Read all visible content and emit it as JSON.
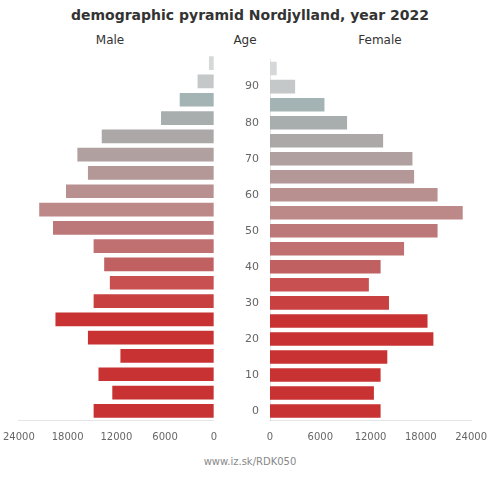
{
  "chart_data": {
    "type": "bar",
    "orientation": "horizontal",
    "title": "demographic pyramid Nordjylland, year 2022",
    "ylabel": "Age",
    "categories": [
      0,
      null,
      10,
      null,
      20,
      null,
      30,
      null,
      40,
      null,
      50,
      null,
      60,
      null,
      70,
      null,
      80,
      null,
      90,
      null
    ],
    "series": [
      {
        "name": "Male",
        "colors": [
          "#c83232",
          "#c83232",
          "#c83232",
          "#c83232",
          "#c83232",
          "#c83232",
          "#c84040",
          "#c85050",
          "#c06060",
          "#c07070",
          "#bc7878",
          "#bc8888",
          "#b89090",
          "#b49898",
          "#b0a0a0",
          "#aca8a8",
          "#a8aeae",
          "#a4b4b4",
          "#c4c8c8",
          "#d4d8d8"
        ],
        "values": [
          14800,
          12500,
          14200,
          11500,
          15500,
          19500,
          14800,
          12800,
          13500,
          14800,
          19800,
          21500,
          18200,
          15500,
          16800,
          13800,
          6500,
          4200,
          2000,
          600
        ]
      },
      {
        "name": "Female",
        "colors": [
          "#c83232",
          "#c83232",
          "#c83232",
          "#c83232",
          "#c83232",
          "#c83232",
          "#c84040",
          "#c85050",
          "#c06060",
          "#c07070",
          "#bc7878",
          "#bc8888",
          "#b89090",
          "#b49898",
          "#b0a0a0",
          "#aca8a8",
          "#a8aeae",
          "#a4b4b4",
          "#c4c8c8",
          "#d4d8d8"
        ],
        "values": [
          13200,
          12400,
          13200,
          14000,
          19500,
          18800,
          14200,
          11800,
          13200,
          16000,
          20000,
          23000,
          20000,
          17200,
          17000,
          13500,
          9200,
          6500,
          3000,
          800
        ]
      }
    ],
    "xlim": [
      0,
      24000
    ],
    "xticks": [
      0,
      6000,
      12000,
      18000,
      24000
    ],
    "grid": false,
    "annotations": [
      "www.iz.sk/RDK050"
    ]
  }
}
